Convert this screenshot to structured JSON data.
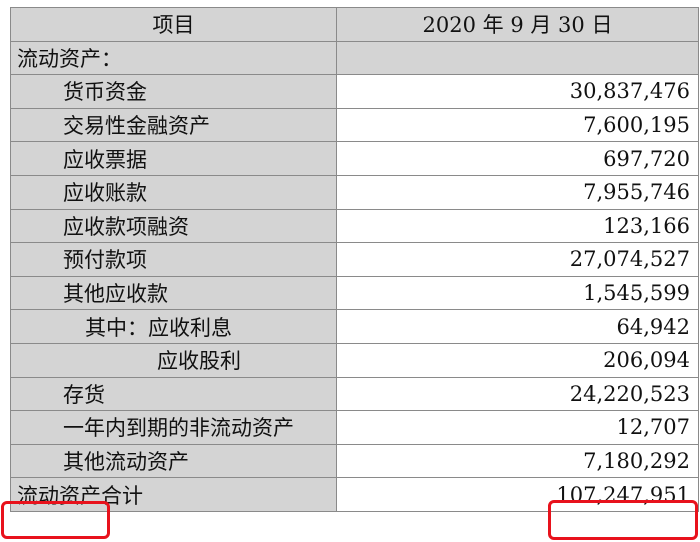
{
  "header": {
    "item": "项目",
    "date": "2020 年 9 月 30 日"
  },
  "section_title": "流动资产：",
  "rows": [
    {
      "label": "货币资金",
      "value": "30,837,476"
    },
    {
      "label": "交易性金融资产",
      "value": "7,600,195"
    },
    {
      "label": "应收票据",
      "value": "697,720"
    },
    {
      "label": "应收账款",
      "value": "7,955,746"
    },
    {
      "label": "应收款项融资",
      "value": "123,166"
    },
    {
      "label": "预付款项",
      "value": "27,074,527"
    },
    {
      "label": "其他应收款",
      "value": "1,545,599"
    },
    {
      "label": "其中：应收利息",
      "value": "64,942"
    },
    {
      "label": "应收股利",
      "value": "206,094"
    },
    {
      "label": "存货",
      "value": "24,220,523"
    },
    {
      "label": "一年内到期的非流动资产",
      "value": "12,707"
    },
    {
      "label": "其他流动资产",
      "value": "7,180,292"
    }
  ],
  "total": {
    "label": "流动资产合计",
    "value": "107,247,951"
  },
  "highlight_color": "#e8121c"
}
